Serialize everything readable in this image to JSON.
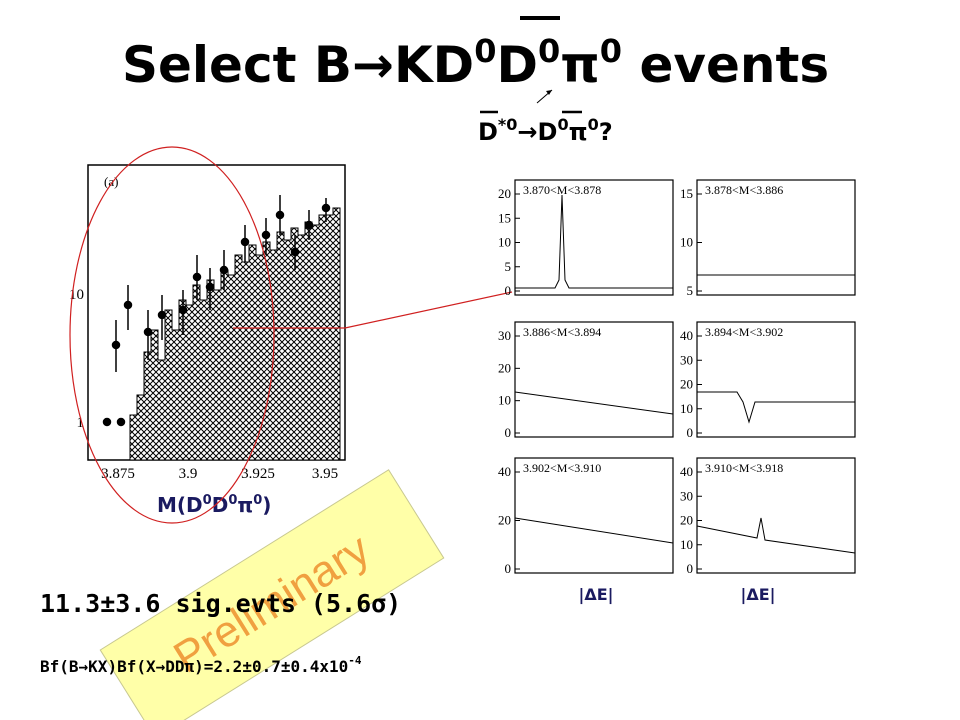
{
  "title": [
    "Select B",
    "→",
    "KD",
    "0",
    "D",
    "0",
    "π",
    "0",
    " events"
  ],
  "subtitle": [
    "D",
    "*0",
    "→",
    "D",
    "0",
    "π",
    "0",
    "?"
  ],
  "main_plot": {
    "label": "(a)",
    "yticks": [
      10,
      1
    ],
    "xticks": [
      3.875,
      3.9,
      3.925,
      3.95
    ],
    "xlabel": [
      "M(D",
      "0",
      "D",
      "0",
      "π",
      "0",
      ")"
    ]
  },
  "panels": [
    {
      "range": "3.870<M<3.878",
      "yticks": [
        20,
        15,
        10,
        5,
        0
      ]
    },
    {
      "range": "3.878<M<3.886",
      "yticks": [
        15,
        10,
        5
      ]
    },
    {
      "range": "3.886<M<3.894",
      "yticks": [
        30,
        20,
        10,
        0
      ]
    },
    {
      "range": "3.894<M<3.902",
      "yticks": [
        40,
        30,
        20,
        10,
        0
      ]
    },
    {
      "range": "3.902<M<3.910",
      "yticks": [
        40,
        20,
        0
      ]
    },
    {
      "range": "3.910<M<3.918",
      "yticks": [
        40,
        30,
        20,
        10,
        0
      ]
    }
  ],
  "panel_xlabels": [
    "|ΔE|",
    "|ΔE|"
  ],
  "result": "11.3±3.6 sig.evts (5.6σ)",
  "branching": [
    "Bf(B",
    "→",
    "KX)Bf(X",
    "→",
    "DDπ)=2.2±0.7±0.4x10",
    "-4"
  ],
  "stamp": "Preliminary"
}
